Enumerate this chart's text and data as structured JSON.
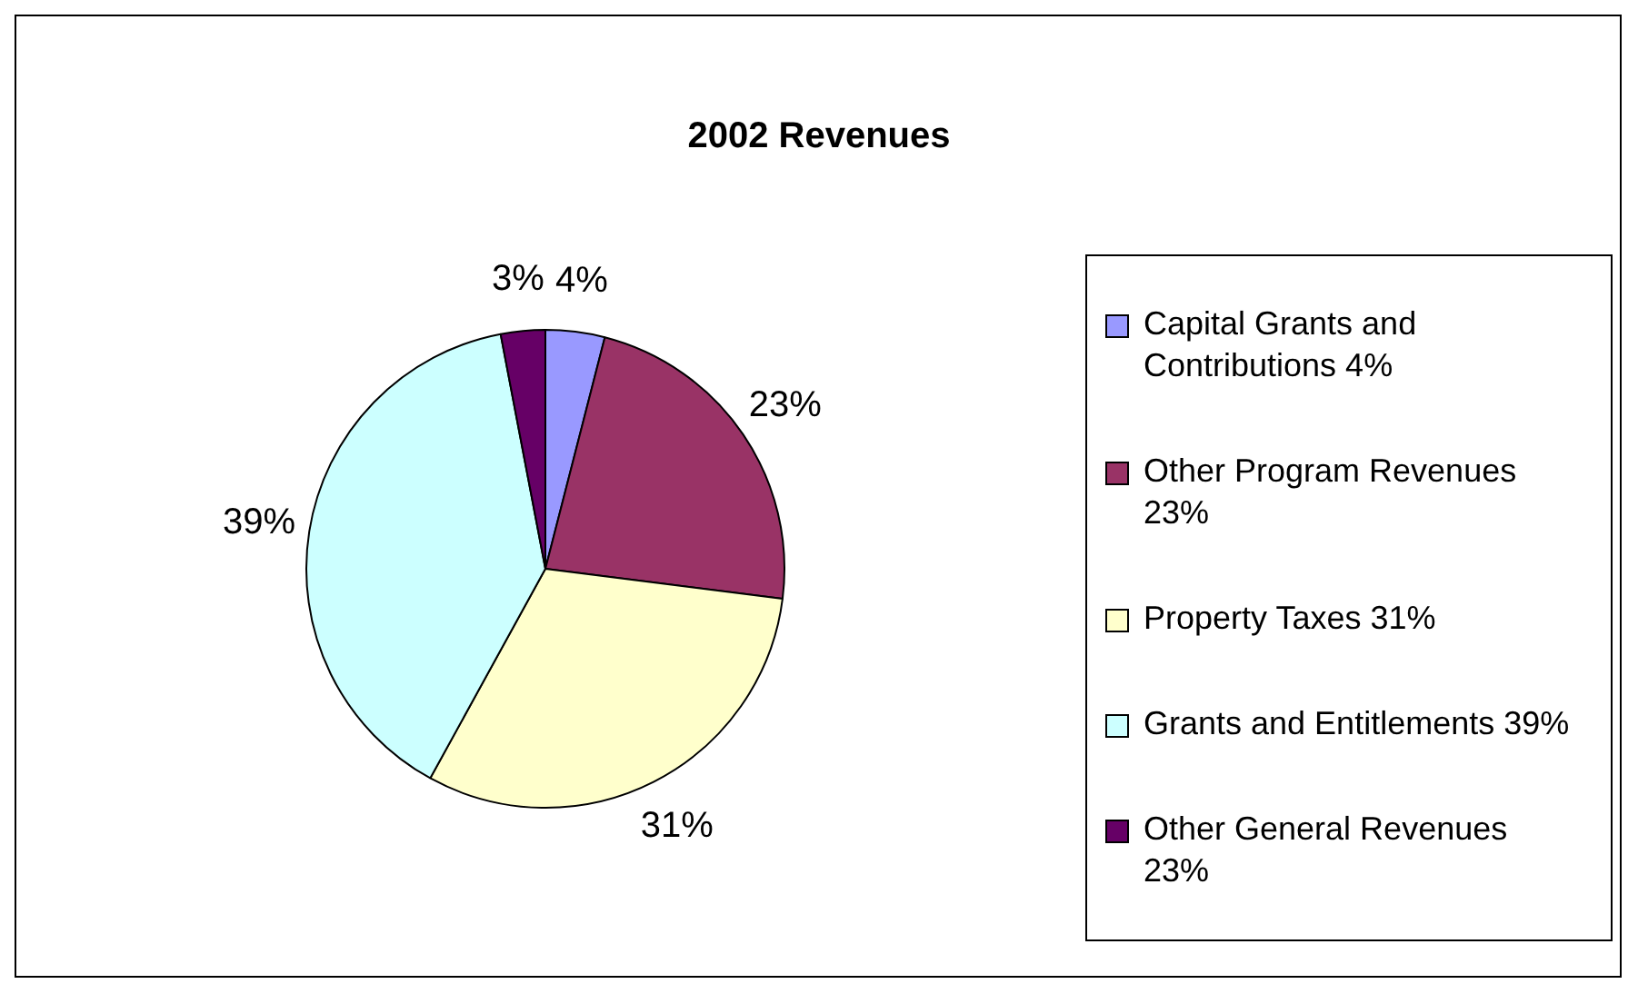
{
  "chart_data": {
    "type": "pie",
    "title": "2002 Revenues",
    "categories": [
      "Capital Grants and Contributions 4%",
      "Other Program Revenues 23%",
      "Property Taxes 31%",
      "Grants and Entitlements 39%",
      "Other General Revenues 23%"
    ],
    "values": [
      4,
      23,
      31,
      39,
      3
    ],
    "colors": [
      "#9999ff",
      "#993366",
      "#ffffcc",
      "#ccffff",
      "#660066"
    ],
    "value_labels": [
      "4%",
      "23%",
      "31%",
      "39%",
      "3%"
    ],
    "legend": "right"
  }
}
